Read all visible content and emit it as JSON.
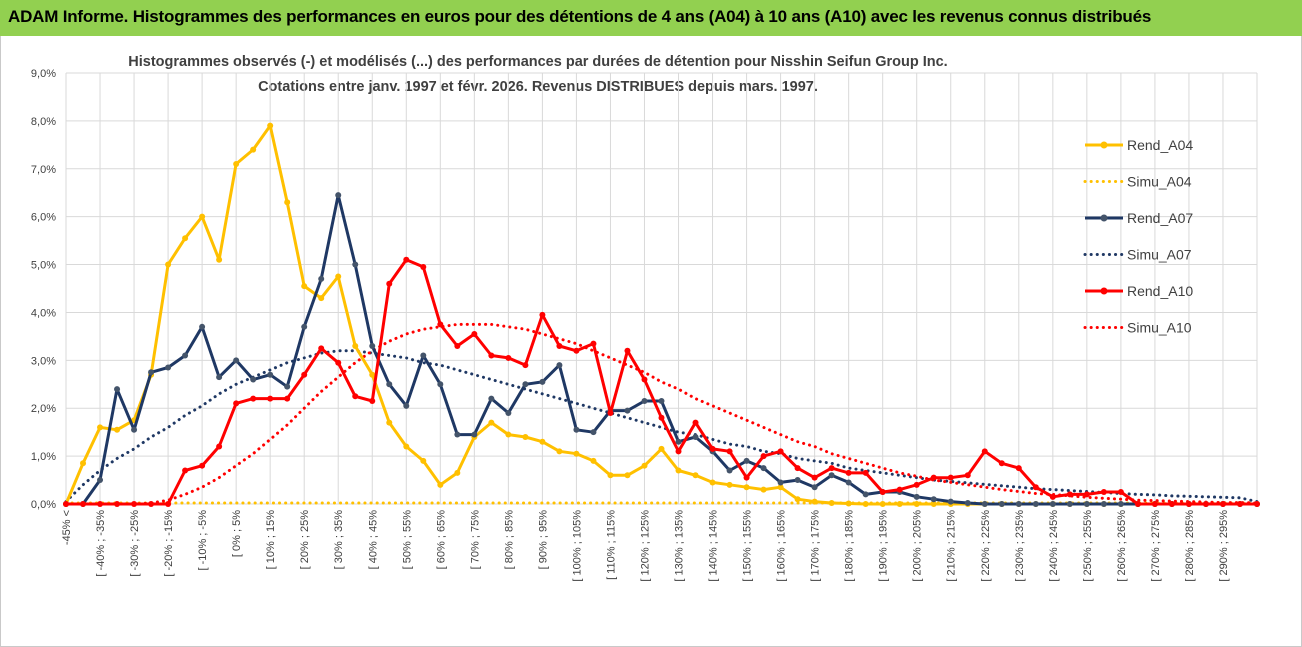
{
  "header": {
    "title": "ADAM Informe. Histogrammes des performances en euros pour des détentions de 4 ans (A04) à 10 ans (A10) avec les revenus connus distribués",
    "background_color": "#92d050"
  },
  "chart_data": {
    "type": "line",
    "title_line1": "Histogrammes observés (-) et modélisés (...) des performances par durées de détention pour Nisshin Seifun Group Inc.",
    "title_line2": "Cotations entre janv. 1997 et févr. 2026. Revenus DISTRIBUES depuis mars. 1997.",
    "ylim": [
      0,
      9
    ],
    "yticks": [
      "0,0%",
      "1,0%",
      "2,0%",
      "3,0%",
      "4,0%",
      "5,0%",
      "6,0%",
      "7,0%",
      "8,0%",
      "9,0%"
    ],
    "grid": true,
    "legend_position": "right",
    "x_labels": [
      "-45% <",
      "[ -40% ; -35%",
      "[ -30% ; -25%",
      "[ -20% ; -15%",
      "[ -10% ; -5%",
      "[ 0% ; 5%",
      "[ 10% ; 15%",
      "[ 20% ; 25%",
      "[ 30% ; 35%",
      "[ 40% ; 45%",
      "[ 50% ; 55%",
      "[ 60% ; 65%",
      "[ 70% ; 75%",
      "[ 80% ; 85%",
      "[ 90% ; 95%",
      "[ 100% ; 105%",
      "[ 110% ; 115%",
      "[ 120% ; 125%",
      "[ 130% ; 135%",
      "[ 140% ; 145%",
      "[ 150% ; 155%",
      "[ 160% ; 165%",
      "[ 170% ; 175%",
      "[ 180% ; 185%",
      "[ 190% ; 195%",
      "[ 200% ; 205%",
      "[ 210% ; 215%",
      "[ 220% ; 225%",
      "[ 230% ; 235%",
      "[ 240% ; 245%",
      "[ 250% ; 255%",
      "[ 260% ; 265%",
      "[ 270% ; 275%",
      "[ 280% ; 285%",
      "[ 290% ; 295%"
    ],
    "series": [
      {
        "name": "Rend_A04",
        "color": "#ffc000",
        "style": "solid",
        "values": [
          0.0,
          0.85,
          1.6,
          1.55,
          1.75,
          2.7,
          5.0,
          5.55,
          6.0,
          5.1,
          7.1,
          7.4,
          7.9,
          6.3,
          4.55,
          4.3,
          4.75,
          3.3,
          2.7,
          1.7,
          1.2,
          0.9,
          0.4,
          0.65,
          1.4,
          1.7,
          1.45,
          1.4,
          1.3,
          1.1,
          1.05,
          0.9,
          0.6,
          0.6,
          0.8,
          1.15,
          0.7,
          0.6,
          0.45,
          0.4,
          0.35,
          0.3,
          0.35,
          0.1,
          0.05,
          0.02,
          0.01,
          0.0,
          0.0,
          0.0,
          0.0,
          0.0,
          0.0,
          0.0,
          0.0,
          0.0,
          0.0,
          0.0,
          0.0,
          0.0,
          0.0,
          0.0,
          0.0,
          0.0,
          0.0,
          0.0,
          0.0,
          0.0,
          0.0,
          0.0,
          0.0
        ]
      },
      {
        "name": "Simu_A04",
        "color": "#ffc000",
        "style": "dotted",
        "values": [
          0.02,
          0.02,
          0.02,
          0.02,
          0.02,
          0.02,
          0.02,
          0.02,
          0.02,
          0.02,
          0.02,
          0.02,
          0.02,
          0.02,
          0.02,
          0.02,
          0.02,
          0.02,
          0.02,
          0.02,
          0.02,
          0.02,
          0.02,
          0.02,
          0.02,
          0.02,
          0.02,
          0.02,
          0.02,
          0.02,
          0.02,
          0.02,
          0.02,
          0.02,
          0.02,
          0.02,
          0.02,
          0.02,
          0.02,
          0.02,
          0.02,
          0.02,
          0.02,
          0.02,
          0.02,
          0.02,
          0.02,
          0.02,
          0.02,
          0.02,
          0.02,
          0.02,
          0.02,
          0.02,
          0.02,
          0.02,
          0.02,
          0.02,
          0.02,
          0.02,
          0.02,
          0.02,
          0.02,
          0.02,
          0.02,
          0.02,
          0.02,
          0.02,
          0.02,
          0.02,
          0.02
        ]
      },
      {
        "name": "Rend_A07",
        "color": "#1f3864",
        "style": "solid",
        "values": [
          0.0,
          0.0,
          0.5,
          2.4,
          1.55,
          2.75,
          2.85,
          3.1,
          3.7,
          2.65,
          3.0,
          2.6,
          2.7,
          2.45,
          3.7,
          4.7,
          6.45,
          5.0,
          3.3,
          2.5,
          2.05,
          3.1,
          2.5,
          1.45,
          1.45,
          2.2,
          1.9,
          2.5,
          2.55,
          2.9,
          1.55,
          1.5,
          1.95,
          1.95,
          2.15,
          2.15,
          1.3,
          1.4,
          1.1,
          0.7,
          0.9,
          0.75,
          0.45,
          0.5,
          0.35,
          0.6,
          0.45,
          0.2,
          0.25,
          0.25,
          0.15,
          0.1,
          0.05,
          0.02,
          0.0,
          0.0,
          0.0,
          0.0,
          0.0,
          0.0,
          0.0,
          0.0,
          0.0,
          0.0,
          0.0,
          0.0,
          0.0,
          0.0,
          0.0,
          0.0,
          0.0
        ]
      },
      {
        "name": "Simu_A07",
        "color": "#1f3864",
        "style": "dotted",
        "values": [
          0.05,
          0.4,
          0.7,
          0.95,
          1.15,
          1.4,
          1.6,
          1.85,
          2.05,
          2.3,
          2.5,
          2.65,
          2.8,
          2.95,
          3.05,
          3.15,
          3.2,
          3.2,
          3.15,
          3.1,
          3.05,
          2.95,
          2.9,
          2.8,
          2.7,
          2.6,
          2.5,
          2.4,
          2.3,
          2.2,
          2.1,
          2.0,
          1.9,
          1.8,
          1.7,
          1.6,
          1.5,
          1.45,
          1.35,
          1.25,
          1.2,
          1.1,
          1.05,
          0.95,
          0.9,
          0.85,
          0.75,
          0.7,
          0.65,
          0.6,
          0.55,
          0.5,
          0.47,
          0.44,
          0.41,
          0.38,
          0.35,
          0.32,
          0.3,
          0.28,
          0.26,
          0.24,
          0.22,
          0.2,
          0.19,
          0.17,
          0.16,
          0.15,
          0.14,
          0.13,
          0.05
        ]
      },
      {
        "name": "Rend_A10",
        "color": "#ff0000",
        "style": "solid",
        "values": [
          0.0,
          0.0,
          0.0,
          0.0,
          0.0,
          0.0,
          0.0,
          0.7,
          0.8,
          1.2,
          2.1,
          2.2,
          2.2,
          2.2,
          2.7,
          3.25,
          2.95,
          2.25,
          2.15,
          4.6,
          5.1,
          4.95,
          3.75,
          3.3,
          3.55,
          3.1,
          3.05,
          2.9,
          3.95,
          3.3,
          3.2,
          3.35,
          1.9,
          3.2,
          2.6,
          1.8,
          1.1,
          1.7,
          1.15,
          1.1,
          0.55,
          1.0,
          1.1,
          0.75,
          0.55,
          0.75,
          0.65,
          0.65,
          0.25,
          0.3,
          0.4,
          0.55,
          0.55,
          0.6,
          1.1,
          0.85,
          0.75,
          0.35,
          0.15,
          0.2,
          0.2,
          0.25,
          0.25,
          0.0,
          0.0,
          0.0,
          0.0,
          0.0,
          0.0,
          0.0,
          0.0
        ]
      },
      {
        "name": "Simu_A10",
        "color": "#ff0000",
        "style": "dotted",
        "values": [
          0.0,
          0.0,
          0.0,
          0.0,
          0.0,
          0.02,
          0.08,
          0.2,
          0.35,
          0.55,
          0.8,
          1.05,
          1.35,
          1.65,
          2.0,
          2.35,
          2.65,
          2.95,
          3.2,
          3.4,
          3.55,
          3.65,
          3.7,
          3.75,
          3.75,
          3.75,
          3.7,
          3.65,
          3.55,
          3.45,
          3.35,
          3.2,
          3.05,
          2.9,
          2.75,
          2.55,
          2.4,
          2.2,
          2.05,
          1.9,
          1.75,
          1.6,
          1.45,
          1.3,
          1.2,
          1.05,
          0.95,
          0.85,
          0.75,
          0.65,
          0.58,
          0.5,
          0.45,
          0.4,
          0.35,
          0.3,
          0.26,
          0.22,
          0.2,
          0.17,
          0.14,
          0.12,
          0.1,
          0.08,
          0.07,
          0.06,
          0.05,
          0.04,
          0.03,
          0.03,
          0.02
        ]
      }
    ]
  }
}
